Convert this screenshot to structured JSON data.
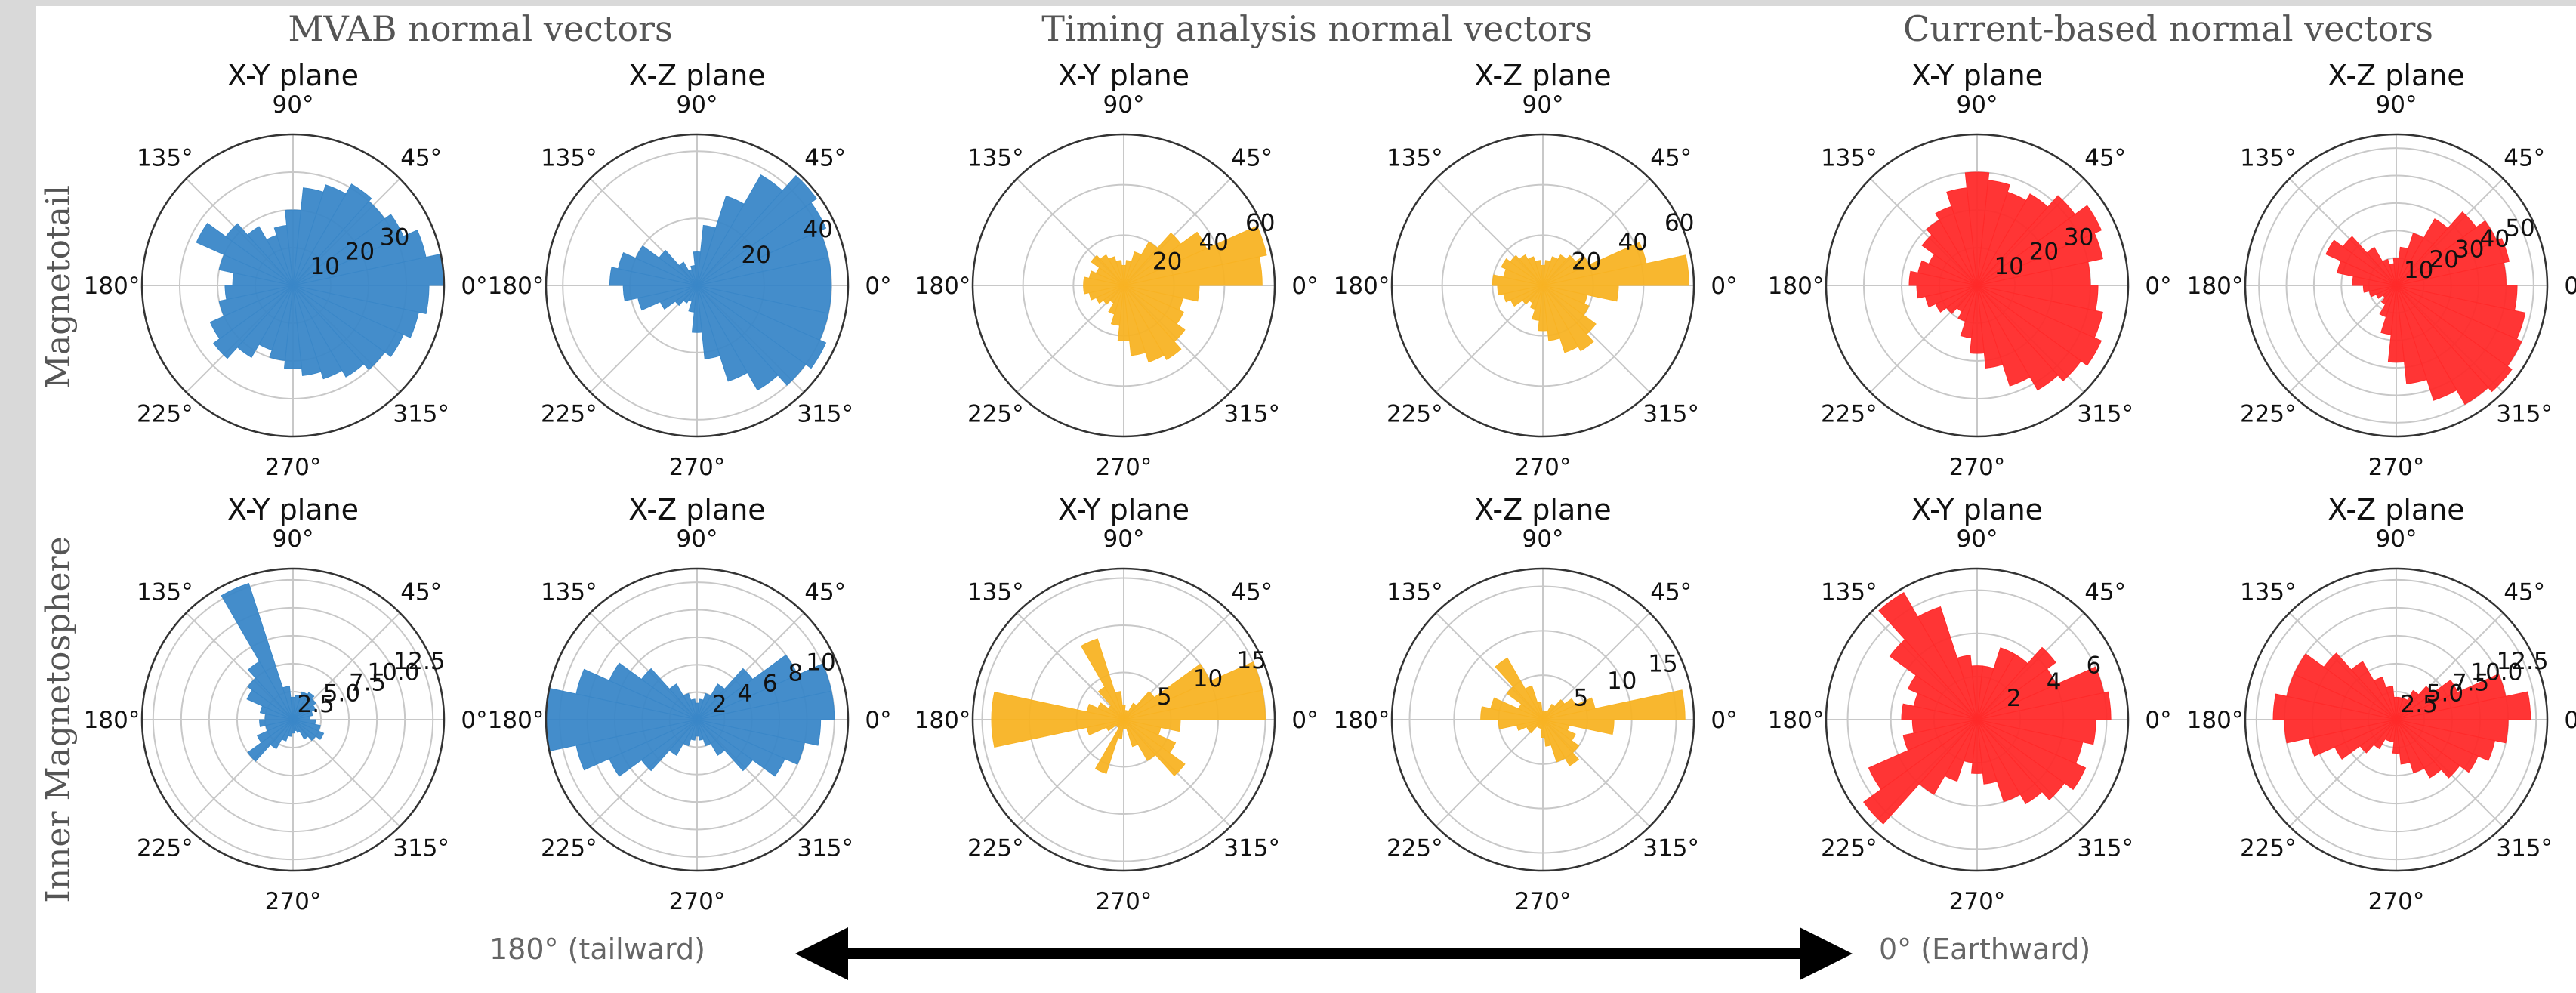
{
  "column_titles": [
    "MVAB normal vectors",
    "Timing analysis normal vectors",
    "Current-based normal vectors"
  ],
  "row_titles": [
    "Magnetotail",
    "Inner Magnetosphere"
  ],
  "colors": {
    "MVAB": "#3a87c8",
    "Timing": "#f8b324",
    "Current": "#ff2a2a"
  },
  "angle_labels": [
    "0°",
    "45°",
    "90°",
    "135°",
    "180°",
    "225°",
    "270°",
    "315°"
  ],
  "direction_labels": {
    "left": "180° (tailward)",
    "right": "0° (Earthward)"
  },
  "chart_data": [
    {
      "type": "polar-bar",
      "method": "MVAB",
      "region": "Magnetotail",
      "title": "X-Y plane",
      "rmax": 40,
      "r_ticks": [
        10,
        20,
        30
      ],
      "r_tick_labels": [
        "10",
        "20",
        "30"
      ],
      "bins_deg": 15,
      "values": [
        40,
        36,
        32,
        30,
        31,
        28,
        26,
        20,
        16,
        14,
        18,
        22,
        28,
        20,
        16,
        18,
        20,
        24,
        26,
        22,
        18,
        20,
        22,
        24,
        26,
        28,
        30,
        32,
        34,
        36
      ]
    },
    {
      "type": "polar-bar",
      "method": "MVAB",
      "region": "Magnetotail",
      "title": "X-Z plane",
      "rmax": 45,
      "r_ticks": [
        20,
        40
      ],
      "r_tick_labels": [
        "20",
        "40"
      ],
      "values": [
        40,
        40,
        42,
        44,
        38,
        28,
        18,
        10,
        6,
        5,
        8,
        14,
        20,
        24,
        26,
        22,
        18,
        12,
        8,
        6,
        5,
        8,
        14,
        22,
        30,
        36,
        40,
        42,
        40,
        40
      ]
    },
    {
      "type": "polar-bar",
      "method": "Timing",
      "region": "Magnetotail",
      "title": "X-Y plane",
      "rmax": 60,
      "r_ticks": [
        20,
        40,
        60
      ],
      "r_tick_labels": [
        "20",
        "40",
        "60"
      ],
      "values": [
        55,
        58,
        36,
        28,
        20,
        14,
        10,
        8,
        10,
        12,
        14,
        16,
        12,
        14,
        16,
        16,
        14,
        12,
        10,
        8,
        12,
        16,
        22,
        28,
        32,
        34,
        30,
        26,
        24,
        30
      ]
    },
    {
      "type": "polar-bar",
      "method": "Timing",
      "region": "Magnetotail",
      "title": "X-Z plane",
      "rmax": 60,
      "r_ticks": [
        20,
        40,
        60
      ],
      "r_tick_labels": [
        "20",
        "40",
        "60"
      ],
      "values": [
        58,
        42,
        20,
        16,
        14,
        12,
        10,
        8,
        10,
        12,
        14,
        16,
        18,
        16,
        20,
        18,
        16,
        14,
        10,
        8,
        10,
        14,
        18,
        22,
        28,
        30,
        26,
        20,
        18,
        30
      ]
    },
    {
      "type": "polar-bar",
      "method": "Current",
      "region": "Magnetotail",
      "title": "X-Y plane",
      "rmax": 40,
      "r_ticks": [
        10,
        20,
        30
      ],
      "r_tick_labels": [
        "10",
        "20",
        "30"
      ],
      "values": [
        30,
        34,
        36,
        32,
        28,
        26,
        28,
        30,
        26,
        22,
        20,
        18,
        14,
        16,
        18,
        16,
        14,
        12,
        10,
        8,
        10,
        14,
        18,
        22,
        28,
        32,
        34,
        36,
        34,
        32
      ]
    },
    {
      "type": "polar-bar",
      "method": "Current",
      "region": "Magnetotail",
      "title": "X-Z plane",
      "rmax": 55,
      "r_ticks": [
        10,
        20,
        30,
        40,
        50
      ],
      "r_tick_labels": [
        "10",
        "20",
        "30",
        "40",
        "50"
      ],
      "values": [
        40,
        42,
        40,
        36,
        28,
        20,
        14,
        10,
        8,
        10,
        16,
        24,
        28,
        22,
        16,
        12,
        10,
        8,
        6,
        8,
        12,
        18,
        28,
        36,
        44,
        50,
        52,
        50,
        48,
        44
      ]
    },
    {
      "type": "polar-bar",
      "method": "MVAB",
      "region": "Inner Magnetosphere",
      "title": "X-Y plane",
      "rmax": 13.5,
      "r_ticks": [
        2.5,
        5.0,
        7.5,
        10.0,
        12.5
      ],
      "r_tick_labels": [
        "2.5",
        "5.0",
        "7.5",
        "10.0",
        "12.5"
      ],
      "values": [
        1.5,
        1.8,
        2.2,
        2.5,
        2.8,
        2.6,
        2.2,
        2.0,
        3.0,
        12.8,
        6.0,
        5.0,
        4.5,
        3.0,
        2.5,
        3.0,
        2.5,
        3.5,
        5.0,
        3.0,
        2.0,
        1.5,
        1.2,
        1.0,
        1.2,
        2.0,
        2.5,
        3.0,
        2.5,
        2.0
      ]
    },
    {
      "type": "polar-bar",
      "method": "MVAB",
      "region": "Inner Magnetosphere",
      "title": "X-Z plane",
      "rmax": 11,
      "r_ticks": [
        2,
        4,
        6,
        8,
        10
      ],
      "r_tick_labels": [
        "2",
        "4",
        "6",
        "8",
        "10"
      ],
      "values": [
        10,
        10,
        8,
        5,
        3,
        2,
        1.5,
        1.2,
        1.5,
        2,
        3,
        5,
        7,
        9,
        11,
        11,
        9,
        7,
        5,
        3,
        2,
        1.5,
        1.2,
        1.5,
        2,
        3,
        5,
        7,
        8,
        9
      ]
    },
    {
      "type": "polar-bar",
      "method": "Timing",
      "region": "Inner Magnetosphere",
      "title": "X-Y plane",
      "rmax": 16,
      "r_ticks": [
        5,
        10,
        15
      ],
      "r_tick_labels": [
        "5",
        "10",
        "15"
      ],
      "values": [
        15,
        15,
        10,
        4,
        2,
        1,
        1,
        1.5,
        3,
        9,
        4,
        2,
        3,
        4,
        14,
        14,
        4,
        2,
        1,
        1,
        6,
        2,
        1,
        1,
        3,
        5,
        8,
        6,
        4,
        6
      ]
    },
    {
      "type": "polar-bar",
      "method": "Timing",
      "region": "Inner Magnetosphere",
      "title": "X-Z plane",
      "rmax": 17,
      "r_ticks": [
        5,
        10,
        15
      ],
      "r_tick_labels": [
        "5",
        "10",
        "15"
      ],
      "values": [
        16,
        6,
        4,
        3,
        2,
        1,
        1,
        1,
        2,
        4,
        8,
        5,
        3,
        6,
        7,
        5,
        3,
        2,
        2,
        1,
        1,
        1,
        2,
        3,
        5,
        6,
        5,
        4,
        3,
        8
      ]
    },
    {
      "type": "polar-bar",
      "method": "Current",
      "region": "Inner Magnetosphere",
      "title": "X-Y plane",
      "rmax": 7,
      "r_ticks": [
        2,
        4,
        6
      ],
      "r_tick_labels": [
        "2",
        "4",
        "6"
      ],
      "values": [
        6.2,
        6.0,
        4.0,
        4.5,
        3.5,
        3.5,
        2.5,
        2.5,
        3.0,
        5.5,
        6.8,
        5.0,
        3.5,
        3.0,
        3.5,
        3.0,
        3.5,
        5.5,
        6.5,
        4.0,
        3.0,
        2.0,
        2.5,
        3.0,
        4.0,
        4.5,
        5.0,
        5.5,
        5.0,
        5.5
      ]
    },
    {
      "type": "polar-bar",
      "method": "Current",
      "region": "Inner Magnetosphere",
      "title": "X-Z plane",
      "rmax": 13.5,
      "r_ticks": [
        2.5,
        5.0,
        7.5,
        10.0,
        12.5
      ],
      "r_tick_labels": [
        "2.5",
        "5.0",
        "7.5",
        "10.0",
        "12.5"
      ],
      "values": [
        12,
        10,
        6,
        4,
        3,
        2,
        2,
        2,
        3,
        4,
        6,
        8,
        10,
        10,
        11,
        10,
        8,
        6,
        4,
        3,
        2,
        2,
        3,
        4,
        5,
        6,
        7,
        8,
        9,
        10
      ]
    }
  ]
}
